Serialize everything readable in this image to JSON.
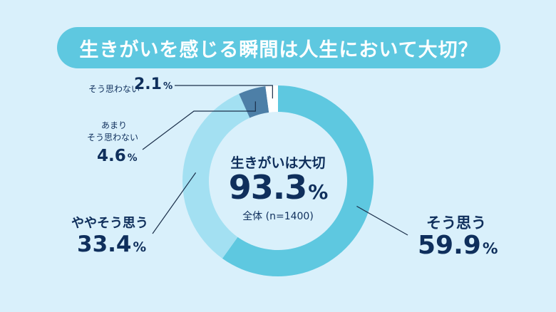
{
  "title": "生きがいを感じる瞬間は人生において大切？",
  "center": {
    "caption": "生きがいは大切",
    "value": "93.3",
    "unit": "%",
    "sample": "全体 (n=1400)"
  },
  "chart_data": {
    "type": "pie",
    "donut": true,
    "title": "生きがいを感じる瞬間は人生において大切？",
    "n": 1400,
    "categories": [
      "そう思う",
      "ややそう思う",
      "あまりそう思わない",
      "そう思わない"
    ],
    "values": [
      59.9,
      33.4,
      4.6,
      2.1
    ],
    "unit": "%",
    "colors": [
      "#5ec8e0",
      "#a3e0f2",
      "#4d7fa7",
      "#ffffff"
    ]
  },
  "labels": {
    "yes": {
      "name": "そう思う",
      "value": "59.9",
      "unit": "%"
    },
    "somewhat_yes": {
      "name": "ややそう思う",
      "value": "33.4",
      "unit": "%"
    },
    "somewhat_no": {
      "name_line1": "あまり",
      "name_line2": "そう思わない",
      "value": "4.6",
      "unit": "%"
    },
    "no": {
      "name": "そう思わない",
      "value": "2.1",
      "unit": "%"
    }
  },
  "colors": {
    "background": "#d9f0fb",
    "title_pill": "#5ec8e0",
    "text_dark": "#0f2f5c",
    "leader_line": "#1b2f4a"
  }
}
